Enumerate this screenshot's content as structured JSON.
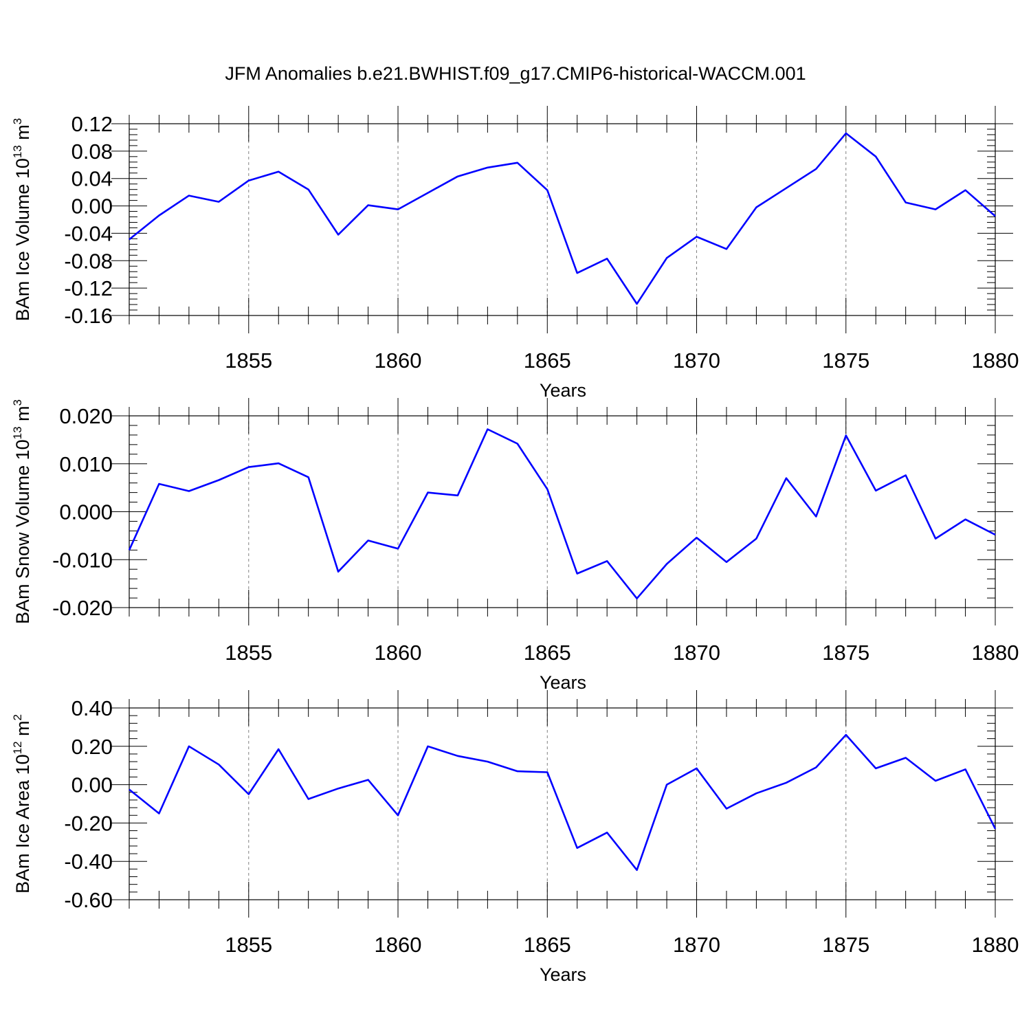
{
  "figure": {
    "title": "JFM Anomalies b.e21.BWHIST.f09_g17.CMIP6-historical-WACCM.001"
  },
  "colors": {
    "series": "#0000ff",
    "frame": "#000000",
    "grid": "#808080"
  },
  "chart_data": [
    {
      "type": "line",
      "title": "",
      "xlabel": "Years",
      "ylabel": {
        "text": "BAm Ice Volume 10",
        "exp1": "13",
        "mid": " m",
        "exp2": "3"
      },
      "xlim": [
        1851,
        1880
      ],
      "ylim": [
        -0.16,
        0.12
      ],
      "xticks": [
        1855,
        1860,
        1865,
        1870,
        1875,
        1880
      ],
      "yticks": [
        0.12,
        0.08,
        0.04,
        0.0,
        -0.04,
        -0.08,
        -0.12,
        -0.16
      ],
      "ytick_labels": [
        "0.12",
        "0.08",
        "0.04",
        "0.00",
        "-0.04",
        "-0.08",
        "-0.12",
        "-0.16"
      ],
      "grid": "vertical dashed at major x ticks",
      "x": [
        1851,
        1852,
        1853,
        1854,
        1855,
        1856,
        1857,
        1858,
        1859,
        1860,
        1861,
        1862,
        1863,
        1864,
        1865,
        1866,
        1867,
        1868,
        1869,
        1870,
        1871,
        1872,
        1873,
        1874,
        1875,
        1876,
        1877,
        1878,
        1879,
        1880
      ],
      "series": [
        {
          "values": [
            -0.049,
            -0.014,
            0.015,
            0.006,
            0.037,
            0.05,
            0.024,
            -0.042,
            0.001,
            -0.005,
            0.019,
            0.043,
            0.056,
            0.063,
            0.023,
            -0.098,
            -0.077,
            -0.143,
            -0.076,
            -0.045,
            -0.063,
            -0.002,
            0.026,
            0.054,
            0.106,
            0.072,
            0.005,
            -0.005,
            0.023,
            -0.015
          ]
        }
      ]
    },
    {
      "type": "line",
      "title": "",
      "xlabel": "Years",
      "ylabel": {
        "text": "BAm Snow Volume 10",
        "exp1": "13",
        "mid": " m",
        "exp2": "3"
      },
      "xlim": [
        1851,
        1880
      ],
      "ylim": [
        -0.02,
        0.02
      ],
      "xticks": [
        1855,
        1860,
        1865,
        1870,
        1875,
        1880
      ],
      "yticks": [
        0.02,
        0.01,
        0.0,
        -0.01,
        -0.02
      ],
      "ytick_labels": [
        "0.020",
        "0.010",
        "0.000",
        "-0.010",
        "-0.020"
      ],
      "grid": "vertical dashed at major x ticks",
      "x": [
        1851,
        1852,
        1853,
        1854,
        1855,
        1856,
        1857,
        1858,
        1859,
        1860,
        1861,
        1862,
        1863,
        1864,
        1865,
        1866,
        1867,
        1868,
        1869,
        1870,
        1871,
        1872,
        1873,
        1874,
        1875,
        1876,
        1877,
        1878,
        1879,
        1880
      ],
      "series": [
        {
          "values": [
            -0.008,
            0.0058,
            0.0043,
            0.0066,
            0.0093,
            0.0101,
            0.0072,
            -0.0125,
            -0.006,
            -0.0077,
            0.004,
            0.0034,
            0.0172,
            0.0142,
            0.0047,
            -0.0129,
            -0.0103,
            -0.0181,
            -0.0109,
            -0.0054,
            -0.0105,
            -0.0056,
            0.007,
            -0.001,
            0.0159,
            0.0044,
            0.0076,
            -0.0056,
            -0.0016,
            -0.0048
          ]
        }
      ]
    },
    {
      "type": "line",
      "title": "",
      "xlabel": "Years",
      "ylabel": {
        "text": "BAm Ice Area 10",
        "exp1": "12",
        "mid": " m",
        "exp2": "2"
      },
      "xlim": [
        1851,
        1880
      ],
      "ylim": [
        -0.6,
        0.4
      ],
      "xticks": [
        1855,
        1860,
        1865,
        1870,
        1875,
        1880
      ],
      "yticks": [
        0.4,
        0.2,
        0.0,
        -0.2,
        -0.4,
        -0.6
      ],
      "ytick_labels": [
        "0.40",
        "0.20",
        "0.00",
        "-0.20",
        "-0.40",
        "-0.60"
      ],
      "grid": "vertical dashed at major x ticks",
      "x": [
        1851,
        1852,
        1853,
        1854,
        1855,
        1856,
        1857,
        1858,
        1859,
        1860,
        1861,
        1862,
        1863,
        1864,
        1865,
        1866,
        1867,
        1868,
        1869,
        1870,
        1871,
        1872,
        1873,
        1874,
        1875,
        1876,
        1877,
        1878,
        1879,
        1880
      ],
      "series": [
        {
          "values": [
            -0.025,
            -0.15,
            0.2,
            0.105,
            -0.05,
            0.185,
            -0.075,
            -0.02,
            0.025,
            -0.16,
            0.2,
            0.15,
            0.12,
            0.07,
            0.065,
            -0.33,
            -0.25,
            -0.445,
            0.0,
            0.085,
            -0.125,
            -0.045,
            0.01,
            0.09,
            0.26,
            0.085,
            0.14,
            0.02,
            0.08,
            -0.23
          ]
        }
      ]
    }
  ]
}
